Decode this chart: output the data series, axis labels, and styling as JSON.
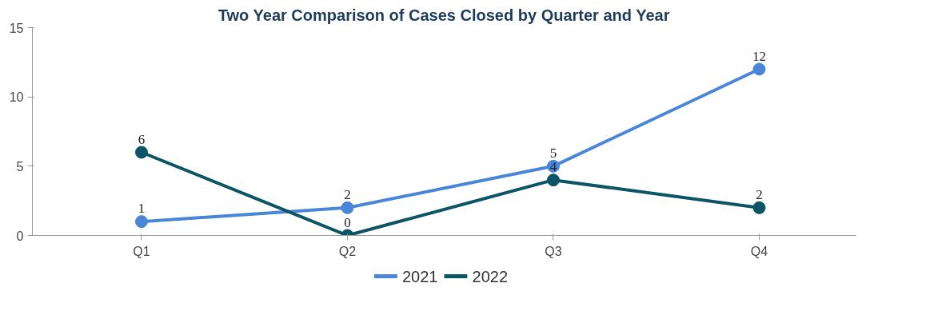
{
  "chart_data": {
    "type": "line",
    "title": "Two Year Comparison of Cases Closed by Quarter and Year",
    "categories": [
      "Q1",
      "Q2",
      "Q3",
      "Q4"
    ],
    "series": [
      {
        "name": "2021",
        "color": "#4a86d8",
        "values": [
          1,
          2,
          5,
          12
        ]
      },
      {
        "name": "2022",
        "color": "#0b5566",
        "values": [
          6,
          0,
          4,
          2
        ]
      }
    ],
    "ylim": [
      0,
      15
    ],
    "yticks": [
      0,
      5,
      10,
      15
    ],
    "grid": false,
    "legend": "bottom",
    "marker": "circle",
    "line_style": "solid",
    "data_labels": true
  }
}
